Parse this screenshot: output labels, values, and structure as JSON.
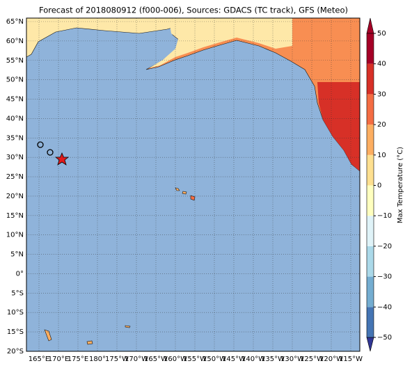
{
  "map": {
    "title": "Forecast of 2018080912 (f000-006), Sources: GDACS (TC track), GFS (Meteo)",
    "lat_labels": [
      "65°N",
      "60°N",
      "55°N",
      "50°N",
      "45°N",
      "40°N",
      "35°N",
      "30°N",
      "25°N",
      "20°N",
      "15°N",
      "10°N",
      "5°N",
      "0°",
      "5°S",
      "10°S",
      "15°S",
      "20°S"
    ],
    "lon_labels": [
      "165°E",
      "170°E",
      "175°E",
      "180°",
      "175°W",
      "170°W",
      "165°W",
      "160°W",
      "155°W",
      "150°W",
      "145°W",
      "140°W",
      "135°W",
      "130°W",
      "125°W",
      "120°W",
      "115°W"
    ],
    "colorbar": {
      "label": "Max Temperature (°C)",
      "ticks": [
        {
          "value": -50,
          "label": "−50"
        },
        {
          "value": -40,
          "label": "−40"
        },
        {
          "value": -30,
          "label": "−30"
        },
        {
          "value": -20,
          "label": "−20"
        },
        {
          "value": -10,
          "label": "−10"
        },
        0,
        10,
        20,
        30,
        40,
        50
      ],
      "colors": [
        "#313695",
        "#4575b4",
        "#74add1",
        "#abd9e9",
        "#e0f3f8",
        "#ffffbf",
        "#fee090",
        "#fdae61",
        "#f46d43",
        "#d73027",
        "#a50026"
      ]
    }
  }
}
